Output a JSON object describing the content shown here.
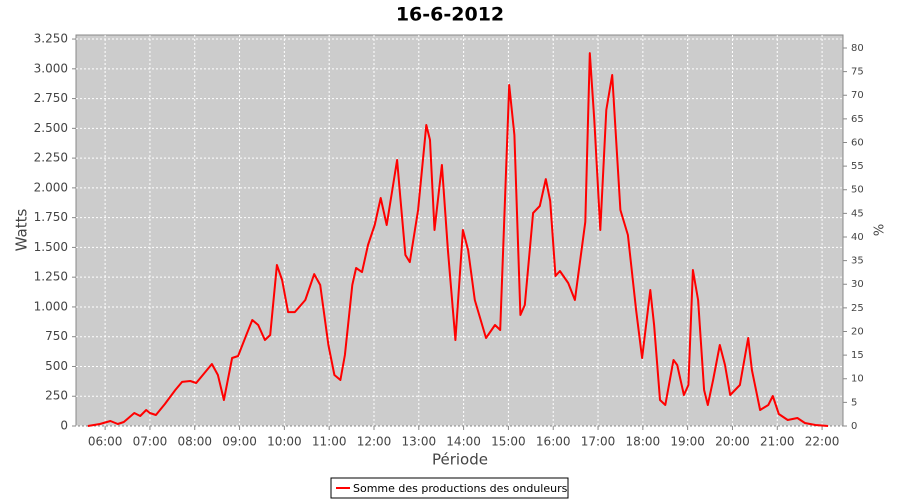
{
  "chart_data": {
    "type": "line",
    "title": "16-6-2012",
    "x_label": "Période",
    "y_label": "Watts",
    "y2_label": "%",
    "x": [
      "05:37",
      "05:53",
      "06:07",
      "06:17",
      "06:25",
      "06:39",
      "06:47",
      "06:55",
      "07:00",
      "07:08",
      "07:20",
      "07:34",
      "07:43",
      "07:54",
      "08:02",
      "08:14",
      "08:23",
      "08:31",
      "08:39",
      "08:50",
      "08:58",
      "09:09",
      "09:17",
      "09:25",
      "09:34",
      "09:41",
      "09:50",
      "09:57",
      "10:05",
      "10:14",
      "10:28",
      "10:40",
      "10:48",
      "10:59",
      "11:07",
      "11:15",
      "11:21",
      "11:31",
      "11:36",
      "11:44",
      "11:52",
      "12:01",
      "12:09",
      "12:17",
      "12:31",
      "12:35",
      "12:42",
      "12:48",
      "12:59",
      "13:10",
      "13:15",
      "13:21",
      "13:31",
      "13:39",
      "13:49",
      "13:59",
      "14:06",
      "14:15",
      "14:30",
      "14:42",
      "14:49",
      "15:01",
      "15:08",
      "15:16",
      "15:22",
      "15:33",
      "15:42",
      "15:50",
      "15:56",
      "16:03",
      "16:09",
      "16:20",
      "16:29",
      "16:43",
      "16:49",
      "16:55",
      "17:03",
      "17:11",
      "17:19",
      "17:30",
      "17:40",
      "17:51",
      "17:59",
      "18:10",
      "18:15",
      "18:23",
      "18:30",
      "18:41",
      "18:46",
      "18:55",
      "19:01",
      "19:07",
      "19:14",
      "19:22",
      "19:27",
      "19:34",
      "19:43",
      "19:50",
      "19:57",
      "20:10",
      "20:21",
      "20:26",
      "20:37",
      "20:48",
      "20:54",
      "21:02",
      "21:14",
      "21:27",
      "21:37",
      "21:51",
      "22:08"
    ],
    "series": [
      {
        "name": "Somme des productions des onduleurs",
        "color": "#ff0000",
        "values": [
          0,
          17,
          42,
          17,
          34,
          109,
          84,
          134,
          109,
          92,
          185,
          302,
          370,
          378,
          361,
          453,
          521,
          428,
          218,
          571,
          588,
          764,
          890,
          848,
          722,
          764,
          1352,
          1226,
          957,
          957,
          1058,
          1276,
          1184,
          680,
          428,
          386,
          596,
          1184,
          1327,
          1293,
          1520,
          1688,
          1915,
          1688,
          2234,
          1940,
          1436,
          1377,
          1814,
          2528,
          2402,
          1646,
          2192,
          1478,
          722,
          1646,
          1478,
          1058,
          739,
          848,
          806,
          2864,
          2444,
          932,
          1016,
          1789,
          1848,
          2074,
          1890,
          1260,
          1302,
          1201,
          1058,
          1714,
          3132,
          2570,
          1646,
          2654,
          2948,
          1814,
          1604,
          974,
          571,
          1142,
          848,
          218,
          176,
          554,
          512,
          260,
          344,
          1310,
          1058,
          302,
          176,
          386,
          680,
          512,
          260,
          344,
          739,
          470,
          134,
          176,
          252,
          101,
          50,
          67,
          25,
          8,
          0
        ]
      }
    ],
    "xlim": [
      "05:21",
      "22:28"
    ],
    "xticks": [
      "06:00",
      "07:00",
      "08:00",
      "09:00",
      "10:00",
      "11:00",
      "12:00",
      "13:00",
      "14:00",
      "15:00",
      "16:00",
      "17:00",
      "18:00",
      "19:00",
      "20:00",
      "21:00",
      "22:00"
    ],
    "ylim": [
      0,
      3284
    ],
    "yticks": [
      0,
      {
        "value": 250,
        "label": "250"
      },
      500,
      750,
      {
        "value": 1000,
        "label": "1.000"
      },
      {
        "value": 1250,
        "label": "1.250"
      },
      {
        "value": 1500,
        "label": "1.500"
      },
      {
        "value": 1750,
        "label": "1.750"
      },
      {
        "value": 2000,
        "label": "2.000"
      },
      {
        "value": 2250,
        "label": "2.250"
      },
      {
        "value": 2500,
        "label": "2.500"
      },
      {
        "value": 2750,
        "label": "2.750"
      },
      {
        "value": 3000,
        "label": "3.000"
      },
      {
        "value": 3250,
        "label": "3.250"
      }
    ],
    "y2lim": [
      0,
      82.75
    ],
    "y2ticks": [
      0,
      5,
      10,
      15,
      20,
      25,
      30,
      35,
      40,
      45,
      50,
      55,
      60,
      65,
      70,
      75,
      80
    ],
    "grid": true,
    "background": "#cccccc"
  }
}
